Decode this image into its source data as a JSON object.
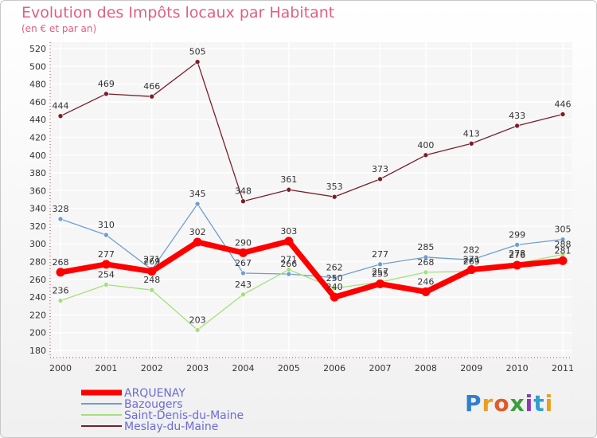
{
  "title": "Evolution des Impôts locaux par Habitant",
  "subtitle": "(en € et par an)",
  "brand": {
    "letters": [
      "P",
      "r",
      "o",
      "x",
      "i",
      "t",
      "i"
    ],
    "colors": [
      "#2f7fd1",
      "#e8a020",
      "#e05a2a",
      "#3a9e3a",
      "#8a3ab9",
      "#2f9fd1",
      "#e8a020"
    ]
  },
  "chart_data": {
    "type": "line",
    "title": "Evolution des Impôts locaux par Habitant",
    "subtitle": "(en € et par an)",
    "x": [
      "2000",
      "2001",
      "2002",
      "2003",
      "2004",
      "2005",
      "2006",
      "2007",
      "2008",
      "2009",
      "2010",
      "2011"
    ],
    "ylim": [
      180,
      520
    ],
    "yticks": [
      "180",
      "200",
      "220",
      "240",
      "260",
      "280",
      "300",
      "320",
      "340",
      "360",
      "380",
      "400",
      "420",
      "440",
      "460",
      "480",
      "500",
      "520"
    ],
    "grid": true,
    "legend": "bottom-left",
    "series": [
      {
        "name": "Meslay-du-Maine",
        "color": "#7a1f2a",
        "values": [
          444,
          469,
          466,
          505,
          348,
          361,
          353,
          373,
          400,
          413,
          433,
          446
        ],
        "labels": [
          "444",
          "469",
          "466",
          "505",
          "348",
          "361",
          "353",
          "373",
          "400",
          "413",
          "433",
          "446"
        ]
      },
      {
        "name": "Bazougers",
        "color": "#6f9fd0",
        "values": [
          328,
          310,
          271,
          345,
          267,
          266,
          262,
          277,
          285,
          282,
          299,
          305
        ],
        "labels": [
          "328",
          "310",
          "271",
          "345",
          "267",
          "266",
          "262",
          "277",
          "285",
          "282",
          "299",
          "305"
        ]
      },
      {
        "name": "Saint-Denis-du-Maine",
        "color": "#a6df7c",
        "values": [
          236,
          254,
          248,
          203,
          243,
          271,
          250,
          257,
          268,
          269,
          278,
          288
        ],
        "labels": [
          "236",
          "254",
          "248",
          "203",
          "243",
          "271",
          "250",
          "257",
          "268",
          "269",
          "278",
          "288"
        ]
      },
      {
        "name": "ARQUENAY",
        "color": "#ff0000",
        "values": [
          268,
          277,
          269,
          302,
          290,
          303,
          240,
          255,
          246,
          271,
          276,
          281
        ],
        "labels": [
          "268",
          "277",
          "269",
          "302",
          "290",
          "303",
          "240",
          "255",
          "246",
          "271",
          "276",
          "281"
        ]
      }
    ],
    "legend_order": [
      "ARQUENAY",
      "Bazougers",
      "Saint-Denis-du-Maine",
      "Meslay-du-Maine"
    ]
  }
}
